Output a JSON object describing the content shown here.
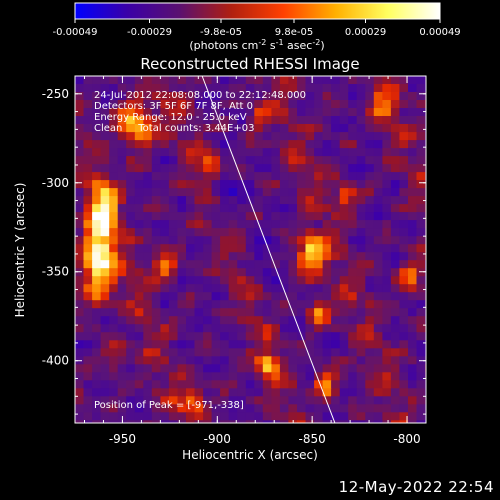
{
  "chart_data": {
    "type": "heatmap",
    "title": "Reconstructed RHESSI Image",
    "xlabel": "Heliocentric X (arcsec)",
    "ylabel": "Heliocentric Y (arcsec)",
    "x_range": [
      -975,
      -790
    ],
    "y_range": [
      -435,
      -240
    ],
    "x_ticks": [
      "-950",
      "-900",
      "-850",
      "-800"
    ],
    "x_tick_values": [
      -950,
      -900,
      -850,
      -800
    ],
    "y_ticks": [
      "-250",
      "-300",
      "-350",
      "-400"
    ],
    "y_tick_values": [
      -250,
      -300,
      -350,
      -400
    ],
    "colorbar": {
      "range": [
        -0.00049,
        0.00049
      ],
      "tick_labels": [
        "-0.00049",
        "-0.00029",
        "-9.8e-05",
        "9.8e-05",
        "0.00029",
        "0.00049"
      ],
      "tick_values": [
        -0.00049,
        -0.00029,
        -9.8e-05,
        9.8e-05,
        0.00029,
        0.00049
      ],
      "unit_text": "(photons cm",
      "unit_sup1": "-2",
      "unit_mid": " s",
      "unit_sup2": "-1",
      "unit_mid2": " asec",
      "unit_sup3": "-2",
      "unit_end": ")",
      "colors": [
        "#0000ff",
        "#3a00a8",
        "#5a1070",
        "#b02010",
        "#ff4000",
        "#ffb000",
        "#ffff60",
        "#ffffff"
      ]
    },
    "annotations": [
      "24-Jul-2012 22:08:08.000 to 22:12:48.000",
      "Detectors: 3F 5F 6F 7F 8F, Att 0",
      "Energy Range: 12.0 - 25.0 keV",
      "Clean     Total counts: 3.44E+03"
    ],
    "peak_label": "Position of Peak = [-971,-338]",
    "peak_position": [
      -971,
      -338
    ],
    "limb_line": [
      [
        -908,
        -240
      ],
      [
        -838,
        -435
      ]
    ],
    "sources": [
      {
        "x": -965,
        "y": -340,
        "sx": 6,
        "sy": 16,
        "amp": 1.0
      },
      {
        "x": -962,
        "y": -310,
        "sx": 5,
        "sy": 10,
        "amp": 0.7
      },
      {
        "x": -945,
        "y": -265,
        "sx": 7,
        "sy": 9,
        "amp": 0.75
      },
      {
        "x": -930,
        "y": -345,
        "sx": 5,
        "sy": 6,
        "amp": 0.55
      },
      {
        "x": -905,
        "y": -290,
        "sx": 4,
        "sy": 6,
        "amp": 0.5
      },
      {
        "x": -880,
        "y": -260,
        "sx": 4,
        "sy": 5,
        "amp": 0.45
      },
      {
        "x": -853,
        "y": -338,
        "sx": 5,
        "sy": 7,
        "amp": 0.9
      },
      {
        "x": -848,
        "y": -370,
        "sx": 4,
        "sy": 6,
        "amp": 0.55
      },
      {
        "x": -835,
        "y": -305,
        "sx": 4,
        "sy": 5,
        "amp": 0.55
      },
      {
        "x": -815,
        "y": -255,
        "sx": 4,
        "sy": 6,
        "amp": 0.5
      },
      {
        "x": -800,
        "y": -350,
        "sx": 4,
        "sy": 7,
        "amp": 0.5
      },
      {
        "x": -875,
        "y": -400,
        "sx": 4,
        "sy": 5,
        "amp": 0.6
      },
      {
        "x": -845,
        "y": -410,
        "sx": 4,
        "sy": 6,
        "amp": 0.55
      },
      {
        "x": -915,
        "y": -420,
        "sx": 5,
        "sy": 6,
        "amp": 0.45
      },
      {
        "x": -955,
        "y": -395,
        "sx": 5,
        "sy": 5,
        "amp": 0.4
      }
    ],
    "grid": false
  },
  "footer_date": "12-May-2022 22:54"
}
